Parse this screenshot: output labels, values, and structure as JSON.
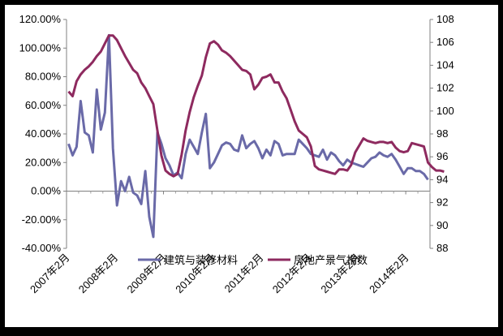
{
  "chart_data": {
    "type": "line",
    "title": "",
    "x_tick_labels": [
      "2007年2月",
      "2008年2月",
      "2009年2月",
      "2010年2月",
      "2011年2月",
      "2012年2月",
      "2013年2月",
      "2014年2月"
    ],
    "y_left": {
      "min": -40,
      "max": 120,
      "step": 20,
      "tick_labels": [
        "-40.00%",
        "-20.00%",
        "0.00%",
        "20.00%",
        "40.00%",
        "60.00%",
        "80.00%",
        "100.00%",
        "120.00%"
      ]
    },
    "y_right": {
      "min": 88,
      "max": 108,
      "step": 2,
      "tick_labels": [
        "88",
        "90",
        "92",
        "94",
        "96",
        "98",
        "100",
        "102",
        "104",
        "106",
        "108"
      ]
    },
    "grid": false,
    "legend_position": "bottom-center",
    "series": [
      {
        "name": "建筑与装修材料",
        "axis": "left",
        "color": "#6a6aa8",
        "values": [
          33,
          25,
          31,
          63,
          41,
          39,
          27,
          71,
          43,
          55,
          109,
          30,
          -10,
          7,
          0,
          10,
          -1,
          -3,
          -9,
          14,
          -18,
          -32,
          41,
          33,
          23,
          18,
          11,
          13,
          9,
          26,
          36,
          31,
          26,
          41,
          54,
          16,
          20,
          26,
          32,
          34,
          33,
          29,
          28,
          39,
          30,
          33,
          35,
          30,
          23,
          29,
          25,
          35,
          33,
          25,
          26,
          26,
          26,
          36,
          33,
          30,
          26,
          25,
          24,
          29,
          22,
          27,
          25,
          21,
          18,
          22,
          20,
          19,
          18,
          17,
          20,
          23,
          24,
          27,
          25,
          24,
          26,
          22,
          17,
          12,
          16,
          16,
          14,
          14,
          12,
          8
        ]
      },
      {
        "name": "房地产景气指数",
        "axis": "right",
        "color": "#8e2a5f",
        "values": [
          101.7,
          101.3,
          102.6,
          103.2,
          103.6,
          103.9,
          104.3,
          104.8,
          105.2,
          105.9,
          106.6,
          106.6,
          106.2,
          105.5,
          104.8,
          104.2,
          103.6,
          103.3,
          102.5,
          102.0,
          101.3,
          100.6,
          98.3,
          96.1,
          94.8,
          94.5,
          94.3,
          94.5,
          96.2,
          98.3,
          99.9,
          101.2,
          102.2,
          103.1,
          104.7,
          105.9,
          106.1,
          105.8,
          105.3,
          105.1,
          104.8,
          104.4,
          104.0,
          103.6,
          103.5,
          103.2,
          101.9,
          102.3,
          102.9,
          103.0,
          103.2,
          102.5,
          102.5,
          101.7,
          101.1,
          100.1,
          99.1,
          98.3,
          98.0,
          97.7,
          96.9,
          95.2,
          94.9,
          94.8,
          94.7,
          94.6,
          94.5,
          94.9,
          94.9,
          94.8,
          95.3,
          96.4,
          97.0,
          97.6,
          97.4,
          97.3,
          97.2,
          97.3,
          97.3,
          97.2,
          97.3,
          96.8,
          96.5,
          96.4,
          96.5,
          97.2,
          97.1,
          97.0,
          96.9,
          95.5,
          95.1,
          94.8,
          94.8,
          94.7
        ]
      }
    ]
  }
}
